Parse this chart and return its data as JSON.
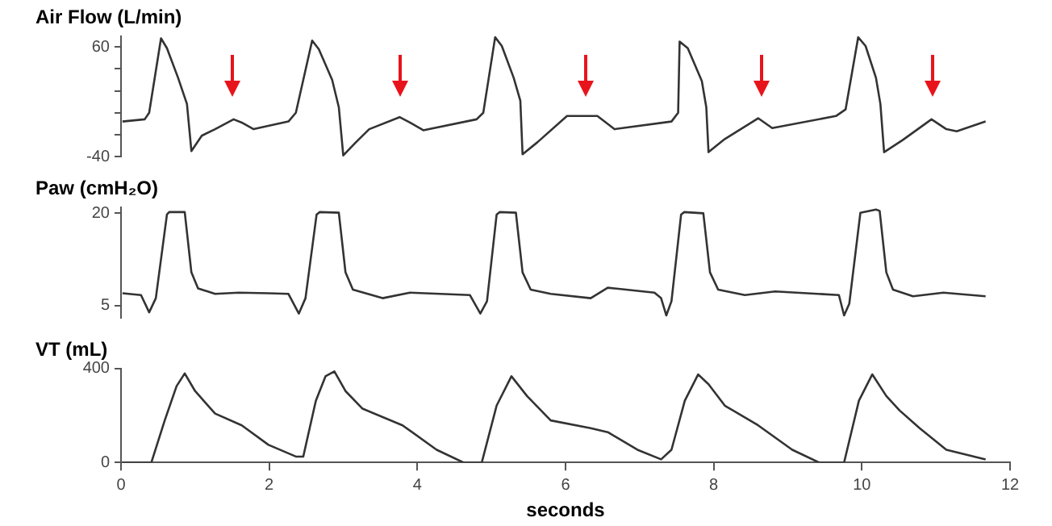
{
  "chart_data": [
    {
      "type": "line",
      "title": "Air Flow (L/min)",
      "xlim": [
        0,
        12
      ],
      "xticks": [
        0,
        2,
        4,
        6,
        8,
        10,
        12
      ],
      "ylim": [
        -40,
        70
      ],
      "yticks": [
        60,
        {
          "value": 40,
          "label": null
        },
        {
          "value": 20,
          "label": null
        },
        {
          "value": 0,
          "label": null
        },
        {
          "value": -20,
          "label": null
        },
        -40
      ],
      "tick_labels": "y",
      "legend": false,
      "grid": false,
      "x": [
        0.02,
        0.32,
        0.38,
        0.54,
        0.62,
        0.77,
        0.89,
        0.95,
        1.09,
        1.27,
        1.52,
        1.63,
        1.79,
        2.26,
        2.36,
        2.58,
        2.67,
        2.85,
        2.94,
        3.0,
        3.17,
        3.35,
        3.76,
        3.9,
        4.08,
        4.8,
        4.89,
        5.05,
        5.14,
        5.3,
        5.39,
        5.42,
        5.62,
        6.02,
        6.43,
        6.66,
        7.43,
        7.52,
        7.54,
        7.65,
        7.84,
        7.9,
        7.93,
        8.15,
        8.6,
        8.79,
        9.65,
        9.78,
        9.95,
        10.05,
        10.19,
        10.25,
        10.3,
        10.55,
        10.94,
        11.14,
        11.28,
        11.67
      ],
      "series": [
        {
          "color": "#333333",
          "values": [
            -8,
            -6,
            0,
            68,
            59,
            32,
            8,
            -35,
            -21,
            -15,
            -6,
            -9,
            -15,
            -8,
            0,
            66,
            58,
            30,
            5,
            -39,
            -27,
            -15,
            -4,
            -9,
            -16,
            -6,
            0,
            69,
            61,
            32,
            11,
            -38,
            -27,
            -3,
            -3,
            -15,
            -8,
            0,
            65,
            59,
            29,
            5,
            -36,
            -24,
            -5,
            -14,
            -3,
            3,
            69,
            61,
            32,
            8,
            -36,
            -25,
            -6,
            -15,
            -17,
            -8
          ]
        }
      ]
    },
    {
      "type": "line",
      "title": "Paw (cmH₂O)",
      "xlim": [
        0,
        12
      ],
      "xticks": [
        0,
        2,
        4,
        6,
        8,
        10,
        12
      ],
      "ylim": [
        3,
        21
      ],
      "yticks": [
        20,
        5
      ],
      "tick_labels": "y",
      "legend": false,
      "grid": false,
      "x": [
        0.02,
        0.27,
        0.38,
        0.47,
        0.62,
        0.65,
        0.86,
        0.95,
        1.04,
        1.27,
        1.59,
        1.99,
        2.26,
        2.4,
        2.49,
        2.64,
        2.68,
        2.94,
        3.03,
        3.13,
        3.53,
        3.9,
        4.71,
        4.85,
        4.94,
        5.07,
        5.11,
        5.33,
        5.42,
        5.53,
        5.8,
        6.34,
        6.57,
        7.2,
        7.29,
        7.36,
        7.43,
        7.56,
        7.6,
        7.86,
        7.95,
        8.06,
        8.42,
        8.83,
        9.69,
        9.76,
        9.83,
        9.98,
        10.19,
        10.24,
        10.33,
        10.42,
        10.69,
        11.1,
        11.67
      ],
      "series": [
        {
          "color": "#333333",
          "values": [
            7.0,
            6.7,
            3.9,
            6.2,
            19.8,
            20.2,
            20.2,
            10.4,
            7.8,
            6.9,
            7.1,
            7.0,
            6.9,
            3.7,
            6.2,
            19.8,
            20.2,
            20.1,
            10.4,
            7.6,
            6.2,
            7.1,
            6.7,
            3.7,
            5.7,
            19.8,
            20.2,
            20.1,
            10.4,
            7.6,
            6.9,
            6.2,
            7.9,
            7.1,
            6.2,
            3.4,
            5.7,
            19.8,
            20.2,
            20,
            10.4,
            7.6,
            6.7,
            7.3,
            6.7,
            3.4,
            5.3,
            20.1,
            20.6,
            20.4,
            10.4,
            7.6,
            6.5,
            7.1,
            6.5
          ]
        }
      ]
    },
    {
      "type": "line",
      "title": "VT (mL)",
      "xlabel": "seconds",
      "xlim": [
        0,
        12
      ],
      "xticks": [
        0,
        2,
        4,
        6,
        8,
        10,
        12
      ],
      "ylim": [
        0,
        400
      ],
      "yticks": [
        400,
        0
      ],
      "legend": false,
      "grid": false,
      "x": [
        0.02,
        0.41,
        0.59,
        0.75,
        0.86,
        1.0,
        1.27,
        1.63,
        1.99,
        2.36,
        2.46,
        2.63,
        2.76,
        2.88,
        3.03,
        3.26,
        3.8,
        4.26,
        4.62,
        4.87,
        5.07,
        5.27,
        5.48,
        5.8,
        6.34,
        6.57,
        6.97,
        7.29,
        7.43,
        7.61,
        7.79,
        7.93,
        8.15,
        8.6,
        9.06,
        9.42,
        9.76,
        9.96,
        10.14,
        10.33,
        10.51,
        10.78,
        11.14,
        11.67
      ],
      "series": [
        {
          "color": "#333333",
          "values": [
            0,
            0,
            179,
            325,
            379,
            304,
            208,
            158,
            75,
            25,
            25,
            263,
            367,
            388,
            304,
            229,
            158,
            54,
            0,
            0,
            242,
            367,
            283,
            179,
            146,
            129,
            54,
            13,
            54,
            263,
            375,
            333,
            242,
            158,
            54,
            0,
            0,
            263,
            375,
            283,
            221,
            146,
            54,
            13
          ]
        }
      ]
    }
  ]
}
